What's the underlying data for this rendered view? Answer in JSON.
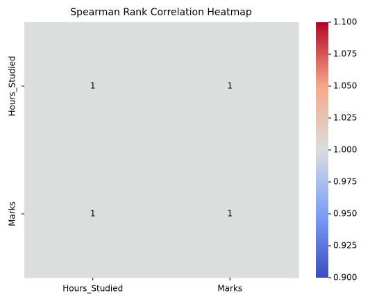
{
  "chart_data": {
    "type": "heatmap",
    "title": "Spearman Rank Correlation Heatmap",
    "x": [
      "Hours_Studied",
      "Marks"
    ],
    "y": [
      "Hours_Studied",
      "Marks"
    ],
    "values": [
      [
        1,
        1
      ],
      [
        1,
        1
      ]
    ],
    "colormap": "coolwarm",
    "clim": [
      0.9,
      1.1
    ],
    "cticks": [
      {
        "value": 0.9,
        "label": "0.900"
      },
      {
        "value": 0.925,
        "label": "0.925"
      },
      {
        "value": 0.95,
        "label": "0.950"
      },
      {
        "value": 0.975,
        "label": "0.975"
      },
      {
        "value": 1.0,
        "label": "1.000"
      },
      {
        "value": 1.025,
        "label": "1.025"
      },
      {
        "value": 1.05,
        "label": "1.050"
      },
      {
        "value": 1.075,
        "label": "1.075"
      },
      {
        "value": 1.1,
        "label": "1.100"
      }
    ]
  }
}
